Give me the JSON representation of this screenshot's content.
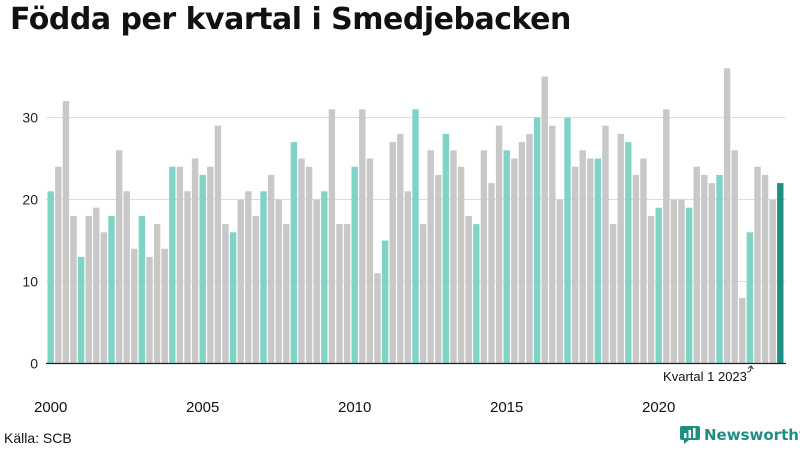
{
  "source": "Källa: SCB",
  "brand": {
    "name": "Newsworthy",
    "icon": "bar-chart-logo-icon",
    "color": "#1f8f84"
  },
  "colors": {
    "other": "#c8c8c8",
    "q1": "#7fd4c8",
    "latest": "#1f8f84",
    "grid": "#dddddd",
    "axis": "#222222"
  },
  "chart_data": {
    "type": "bar",
    "title": "Födda per kvartal i Smedjebacken",
    "start_year": 2000,
    "ylim": [
      0,
      36
    ],
    "yticks": [
      0,
      10,
      20,
      30
    ],
    "xtick_labels": [
      "2000",
      "2005",
      "2010",
      "2015",
      "2020"
    ],
    "grid": true,
    "annotation": "Kvartal 1 2023",
    "values": [
      21,
      24,
      32,
      18,
      13,
      18,
      19,
      16,
      18,
      26,
      21,
      14,
      18,
      13,
      17,
      14,
      24,
      24,
      21,
      25,
      23,
      24,
      29,
      17,
      16,
      20,
      21,
      18,
      21,
      23,
      20,
      17,
      27,
      25,
      24,
      20,
      21,
      31,
      17,
      17,
      24,
      31,
      25,
      11,
      15,
      27,
      28,
      21,
      31,
      17,
      26,
      23,
      28,
      26,
      24,
      18,
      17,
      26,
      22,
      29,
      26,
      25,
      27,
      28,
      30,
      35,
      29,
      20,
      30,
      24,
      26,
      25,
      25,
      29,
      17,
      28,
      27,
      23,
      25,
      18,
      19,
      31,
      20,
      20,
      19,
      24,
      23,
      22,
      23,
      36,
      26,
      8,
      16,
      24,
      23,
      20,
      22
    ]
  }
}
